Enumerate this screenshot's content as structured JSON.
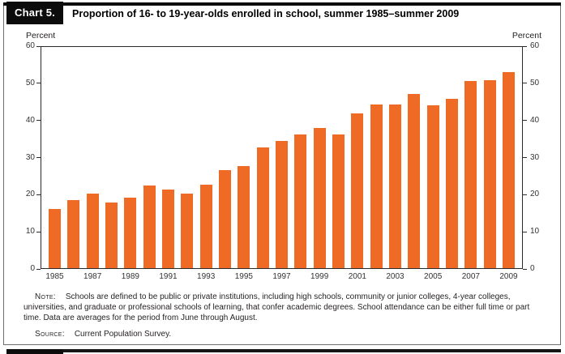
{
  "header": {
    "chart_label": "Chart 5.",
    "title": "Proportion of 16- to 19-year-olds enrolled in school, summer 1985–summer 2009"
  },
  "axes": {
    "left_caption": "Percent",
    "right_caption": "Percent"
  },
  "chart_data": {
    "type": "bar",
    "title": "Proportion of 16- to 19-year-olds enrolled in school, summer 1985–summer 2009",
    "categories": [
      "1985",
      "1986",
      "1987",
      "1988",
      "1989",
      "1990",
      "1991",
      "1992",
      "1993",
      "1994",
      "1995",
      "1996",
      "1997",
      "1998",
      "1999",
      "2000",
      "2001",
      "2002",
      "2003",
      "2004",
      "2005",
      "2006",
      "2007",
      "2008",
      "2009"
    ],
    "values": [
      16.0,
      18.5,
      20.3,
      17.9,
      19.2,
      22.4,
      21.4,
      20.2,
      22.7,
      26.6,
      27.7,
      32.7,
      34.5,
      36.2,
      38.1,
      36.2,
      42.0,
      44.3,
      44.3,
      47.3,
      44.2,
      45.9,
      50.7,
      51.0,
      53.1
    ],
    "xlabel": "",
    "ylabel": "Percent",
    "ylim": [
      0,
      60
    ],
    "yticks": [
      0,
      10,
      20,
      30,
      40,
      50,
      60
    ],
    "x_tick_labels_shown": [
      "1985",
      "1987",
      "1989",
      "1991",
      "1993",
      "1995",
      "1997",
      "1999",
      "2001",
      "2003",
      "2005",
      "2007",
      "2009"
    ],
    "grid": false,
    "legend": "none",
    "bar_color": "#EE6A25",
    "axis_color": "#2b2b2b"
  },
  "notes": {
    "note_label": "Note:",
    "note_text": "Schools are defined to be public or private institutions, including high schools, community or junior colleges, 4-year colleges, universities, and graduate or professional schools of learning, that confer academic degrees. School attendance can be either full time or part time. Data are averages for the period from June through August.",
    "source_label": "Source:",
    "source_text": "Current Population Survey."
  }
}
